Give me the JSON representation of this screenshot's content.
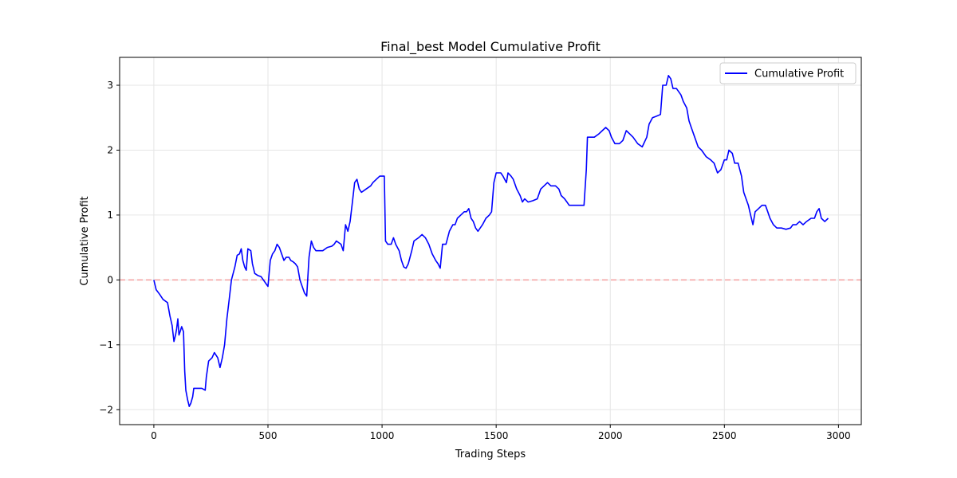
{
  "chart_data": {
    "type": "line",
    "title": "Final_best Model Cumulative Profit",
    "xlabel": "Trading Steps",
    "ylabel": "Cumulative Profit",
    "xlim": [
      -150,
      3100
    ],
    "ylim": [
      -2.23,
      3.43
    ],
    "xticks": [
      0,
      500,
      1000,
      1500,
      2000,
      2500,
      3000
    ],
    "yticks": [
      -2,
      -1,
      0,
      1,
      2,
      3
    ],
    "ytick_labels": [
      "−2",
      "−1",
      "0",
      "1",
      "2",
      "3"
    ],
    "grid": true,
    "legend_position": "top-right",
    "reference_line": {
      "y": 0,
      "color": "#f4a0a0",
      "style": "dashed"
    },
    "series": [
      {
        "name": "Cumulative Profit",
        "color": "#0000ff",
        "points": [
          [
            0,
            0
          ],
          [
            10,
            -0.15
          ],
          [
            25,
            -0.22
          ],
          [
            40,
            -0.3
          ],
          [
            60,
            -0.35
          ],
          [
            70,
            -0.55
          ],
          [
            80,
            -0.7
          ],
          [
            88,
            -0.95
          ],
          [
            95,
            -0.85
          ],
          [
            100,
            -0.75
          ],
          [
            105,
            -0.6
          ],
          [
            110,
            -0.85
          ],
          [
            115,
            -0.8
          ],
          [
            122,
            -0.72
          ],
          [
            130,
            -0.8
          ],
          [
            135,
            -1.4
          ],
          [
            140,
            -1.7
          ],
          [
            148,
            -1.85
          ],
          [
            155,
            -1.95
          ],
          [
            162,
            -1.9
          ],
          [
            170,
            -1.8
          ],
          [
            175,
            -1.67
          ],
          [
            190,
            -1.67
          ],
          [
            210,
            -1.67
          ],
          [
            225,
            -1.7
          ],
          [
            230,
            -1.5
          ],
          [
            240,
            -1.25
          ],
          [
            255,
            -1.2
          ],
          [
            265,
            -1.12
          ],
          [
            280,
            -1.2
          ],
          [
            290,
            -1.35
          ],
          [
            300,
            -1.2
          ],
          [
            310,
            -1.0
          ],
          [
            320,
            -0.6
          ],
          [
            330,
            -0.3
          ],
          [
            340,
            0.0
          ],
          [
            355,
            0.2
          ],
          [
            365,
            0.38
          ],
          [
            375,
            0.4
          ],
          [
            383,
            0.48
          ],
          [
            390,
            0.3
          ],
          [
            398,
            0.2
          ],
          [
            405,
            0.15
          ],
          [
            412,
            0.48
          ],
          [
            425,
            0.45
          ],
          [
            432,
            0.25
          ],
          [
            442,
            0.1
          ],
          [
            455,
            0.07
          ],
          [
            470,
            0.05
          ],
          [
            480,
            0.0
          ],
          [
            490,
            -0.05
          ],
          [
            500,
            -0.1
          ],
          [
            510,
            0.3
          ],
          [
            520,
            0.4
          ],
          [
            530,
            0.45
          ],
          [
            540,
            0.55
          ],
          [
            550,
            0.5
          ],
          [
            560,
            0.4
          ],
          [
            570,
            0.3
          ],
          [
            580,
            0.35
          ],
          [
            592,
            0.35
          ],
          [
            600,
            0.3
          ],
          [
            610,
            0.28
          ],
          [
            620,
            0.25
          ],
          [
            630,
            0.2
          ],
          [
            640,
            0.0
          ],
          [
            650,
            -0.1
          ],
          [
            660,
            -0.2
          ],
          [
            670,
            -0.25
          ],
          [
            680,
            0.35
          ],
          [
            690,
            0.6
          ],
          [
            700,
            0.5
          ],
          [
            710,
            0.45
          ],
          [
            720,
            0.45
          ],
          [
            740,
            0.45
          ],
          [
            760,
            0.5
          ],
          [
            780,
            0.52
          ],
          [
            790,
            0.55
          ],
          [
            800,
            0.6
          ],
          [
            820,
            0.55
          ],
          [
            830,
            0.45
          ],
          [
            840,
            0.85
          ],
          [
            850,
            0.75
          ],
          [
            860,
            0.9
          ],
          [
            870,
            1.2
          ],
          [
            880,
            1.5
          ],
          [
            890,
            1.55
          ],
          [
            900,
            1.4
          ],
          [
            910,
            1.35
          ],
          [
            930,
            1.4
          ],
          [
            950,
            1.45
          ],
          [
            960,
            1.5
          ],
          [
            975,
            1.55
          ],
          [
            990,
            1.6
          ],
          [
            1010,
            1.6
          ],
          [
            1015,
            0.6
          ],
          [
            1025,
            0.55
          ],
          [
            1040,
            0.55
          ],
          [
            1050,
            0.65
          ],
          [
            1060,
            0.55
          ],
          [
            1075,
            0.45
          ],
          [
            1085,
            0.3
          ],
          [
            1095,
            0.2
          ],
          [
            1105,
            0.18
          ],
          [
            1115,
            0.25
          ],
          [
            1130,
            0.45
          ],
          [
            1140,
            0.6
          ],
          [
            1160,
            0.65
          ],
          [
            1175,
            0.7
          ],
          [
            1190,
            0.65
          ],
          [
            1205,
            0.55
          ],
          [
            1220,
            0.4
          ],
          [
            1235,
            0.3
          ],
          [
            1245,
            0.25
          ],
          [
            1255,
            0.18
          ],
          [
            1265,
            0.55
          ],
          [
            1280,
            0.55
          ],
          [
            1295,
            0.75
          ],
          [
            1310,
            0.85
          ],
          [
            1320,
            0.85
          ],
          [
            1330,
            0.95
          ],
          [
            1345,
            1.0
          ],
          [
            1360,
            1.05
          ],
          [
            1370,
            1.05
          ],
          [
            1380,
            1.1
          ],
          [
            1390,
            0.95
          ],
          [
            1400,
            0.9
          ],
          [
            1410,
            0.8
          ],
          [
            1420,
            0.75
          ],
          [
            1440,
            0.85
          ],
          [
            1455,
            0.95
          ],
          [
            1470,
            1.0
          ],
          [
            1480,
            1.05
          ],
          [
            1490,
            1.5
          ],
          [
            1500,
            1.65
          ],
          [
            1520,
            1.65
          ],
          [
            1530,
            1.6
          ],
          [
            1545,
            1.5
          ],
          [
            1552,
            1.65
          ],
          [
            1565,
            1.6
          ],
          [
            1575,
            1.55
          ],
          [
            1590,
            1.4
          ],
          [
            1605,
            1.3
          ],
          [
            1615,
            1.2
          ],
          [
            1625,
            1.25
          ],
          [
            1640,
            1.2
          ],
          [
            1660,
            1.22
          ],
          [
            1680,
            1.25
          ],
          [
            1695,
            1.4
          ],
          [
            1710,
            1.45
          ],
          [
            1725,
            1.5
          ],
          [
            1740,
            1.45
          ],
          [
            1760,
            1.45
          ],
          [
            1775,
            1.4
          ],
          [
            1785,
            1.3
          ],
          [
            1800,
            1.25
          ],
          [
            1810,
            1.2
          ],
          [
            1820,
            1.15
          ],
          [
            1840,
            1.15
          ],
          [
            1860,
            1.15
          ],
          [
            1885,
            1.15
          ],
          [
            1895,
            1.7
          ],
          [
            1900,
            2.2
          ],
          [
            1915,
            2.2
          ],
          [
            1930,
            2.2
          ],
          [
            1950,
            2.25
          ],
          [
            1965,
            2.3
          ],
          [
            1980,
            2.35
          ],
          [
            1995,
            2.3
          ],
          [
            2005,
            2.2
          ],
          [
            2020,
            2.1
          ],
          [
            2040,
            2.1
          ],
          [
            2055,
            2.15
          ],
          [
            2070,
            2.3
          ],
          [
            2085,
            2.25
          ],
          [
            2100,
            2.2
          ],
          [
            2120,
            2.1
          ],
          [
            2140,
            2.05
          ],
          [
            2160,
            2.2
          ],
          [
            2170,
            2.4
          ],
          [
            2185,
            2.5
          ],
          [
            2200,
            2.52
          ],
          [
            2220,
            2.55
          ],
          [
            2230,
            3.0
          ],
          [
            2245,
            3.0
          ],
          [
            2255,
            3.15
          ],
          [
            2265,
            3.1
          ],
          [
            2275,
            2.95
          ],
          [
            2290,
            2.95
          ],
          [
            2300,
            2.9
          ],
          [
            2310,
            2.85
          ],
          [
            2320,
            2.75
          ],
          [
            2335,
            2.65
          ],
          [
            2345,
            2.45
          ],
          [
            2355,
            2.35
          ],
          [
            2370,
            2.2
          ],
          [
            2385,
            2.05
          ],
          [
            2400,
            2.0
          ],
          [
            2420,
            1.9
          ],
          [
            2440,
            1.85
          ],
          [
            2455,
            1.8
          ],
          [
            2470,
            1.65
          ],
          [
            2485,
            1.7
          ],
          [
            2500,
            1.85
          ],
          [
            2510,
            1.85
          ],
          [
            2520,
            2.0
          ],
          [
            2535,
            1.95
          ],
          [
            2545,
            1.8
          ],
          [
            2560,
            1.8
          ],
          [
            2575,
            1.6
          ],
          [
            2585,
            1.35
          ],
          [
            2595,
            1.25
          ],
          [
            2605,
            1.15
          ],
          [
            2615,
            1.0
          ],
          [
            2625,
            0.85
          ],
          [
            2635,
            1.05
          ],
          [
            2650,
            1.1
          ],
          [
            2665,
            1.15
          ],
          [
            2680,
            1.15
          ],
          [
            2690,
            1.05
          ],
          [
            2700,
            0.95
          ],
          [
            2715,
            0.85
          ],
          [
            2730,
            0.8
          ],
          [
            2750,
            0.8
          ],
          [
            2770,
            0.78
          ],
          [
            2790,
            0.8
          ],
          [
            2800,
            0.85
          ],
          [
            2815,
            0.85
          ],
          [
            2830,
            0.9
          ],
          [
            2845,
            0.85
          ],
          [
            2860,
            0.9
          ],
          [
            2880,
            0.95
          ],
          [
            2895,
            0.95
          ],
          [
            2905,
            1.05
          ],
          [
            2915,
            1.1
          ],
          [
            2925,
            0.95
          ],
          [
            2940,
            0.9
          ],
          [
            2955,
            0.95
          ]
        ]
      }
    ]
  }
}
